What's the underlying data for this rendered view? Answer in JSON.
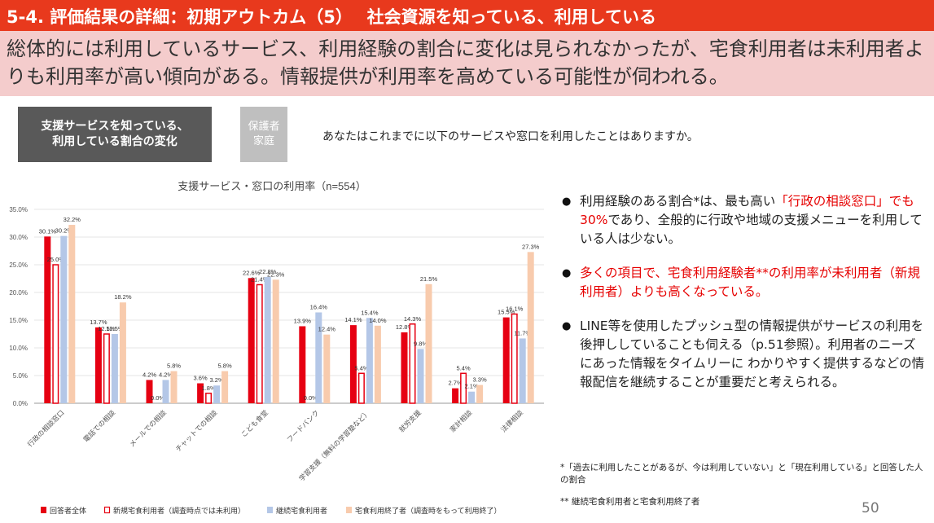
{
  "slide": {
    "title": "5-4. 評価結果の詳細：初期アウトカム（5）　 社会資源を知っている、利用している",
    "summary": "総体的には利用しているサービス、利用経験の割合に変化は見られなかったが、宅食利用者は未利用者よりも利用率が高い傾向がある。情報提供が利用率を高めている可能性が伺われる。",
    "topic_box_line1": "支援サービスを知っている、",
    "topic_box_line2": "利用している割合の変化",
    "target_line1": "保護者",
    "target_line2": "家庭",
    "question": "あなたはこれまでに以下のサービスや窓口を利用したことはありますか。",
    "bullet1_pre": "利用経験のある割合*は、最も高い",
    "bullet1_red": "「行政の相談窓口」でも30%",
    "bullet1_post": "であり、全般的に行政や地域の支援メニューを利用している人は少ない。",
    "bullet2": "多くの項目で、宅食利用経験者**の利用率が未利用者（新規利用者）よりも高くなっている。",
    "bullet3": "LINE等を使用したプッシュ型の情報提供がサービスの利用を後押ししていることも伺える（p.51参照）。利用者のニーズにあった情報をタイムリーに わかりやすく提供するなどの情報配信を継続することが重要だと考えられる。",
    "footnote1": "*「過去に利用したことがあるが、今は利用していない」と「現在利用している」と回答した人の割合",
    "footnote2": "** 継続宅食利用者と宅食利用終了者",
    "page_number": "50"
  },
  "chart_data": {
    "type": "bar",
    "title": "支援サービス・窓口の利用率（n=554）",
    "categories": [
      "行政の相談窓口",
      "電話での相談",
      "メールでの相談",
      "チャットでの相談",
      "こども食堂",
      "フードバンク",
      "学習支援（無料の学習塾など）",
      "就労支援",
      "家計相談",
      "法律相談"
    ],
    "ylim": [
      0,
      35
    ],
    "yticks": [
      "0.0%",
      "5.0%",
      "10.0%",
      "15.0%",
      "20.0%",
      "25.0%",
      "30.0%",
      "35.0%"
    ],
    "series": [
      {
        "name": "回答者全体",
        "color": "#e60012",
        "hollow": false,
        "values": [
          30.1,
          13.7,
          4.2,
          3.6,
          22.6,
          13.9,
          14.1,
          12.8,
          2.7,
          15.5
        ]
      },
      {
        "name": "新規宅食利用者（調査時点では未利用）",
        "color": "#e60012",
        "hollow": true,
        "values": [
          25.0,
          12.5,
          0.0,
          1.8,
          21.4,
          0.0,
          5.4,
          14.3,
          5.4,
          16.1
        ]
      },
      {
        "name": "継続宅食利用者",
        "color": "#b4c7e7",
        "hollow": false,
        "values": [
          30.2,
          12.5,
          4.2,
          3.2,
          22.8,
          16.4,
          15.4,
          9.8,
          2.1,
          11.7
        ]
      },
      {
        "name": "宅食利用終了者（調査時をもって利用終了）",
        "color": "#f8cbad",
        "hollow": false,
        "values": [
          32.2,
          18.2,
          5.8,
          5.8,
          22.3,
          12.4,
          14.0,
          21.5,
          3.3,
          27.3
        ]
      }
    ],
    "value_labels": [
      [
        "30.1%",
        "25.0%",
        "30.2%",
        "32.2%"
      ],
      [
        "13.7%",
        "12.5%",
        "12.5%",
        "18.2%"
      ],
      [
        "4.2%",
        "0.0%",
        "4.2%",
        "5.8%"
      ],
      [
        "3.6%",
        "1.8%",
        "3.2%",
        "5.8%"
      ],
      [
        "22.6%",
        "21.4%",
        "22.8%",
        "22.3%"
      ],
      [
        "13.9%",
        "0.0%",
        "16.4%",
        "12.4%"
      ],
      [
        "14.1%",
        "5.4%",
        "15.4%",
        "14.0%"
      ],
      [
        "12.8%",
        "14.3%",
        "9.8%",
        "21.5%"
      ],
      [
        "2.7%",
        "5.4%",
        "2.1%",
        "3.3%"
      ],
      [
        "15.5%",
        "16.1%",
        "11.7%",
        "27.3%"
      ]
    ]
  }
}
